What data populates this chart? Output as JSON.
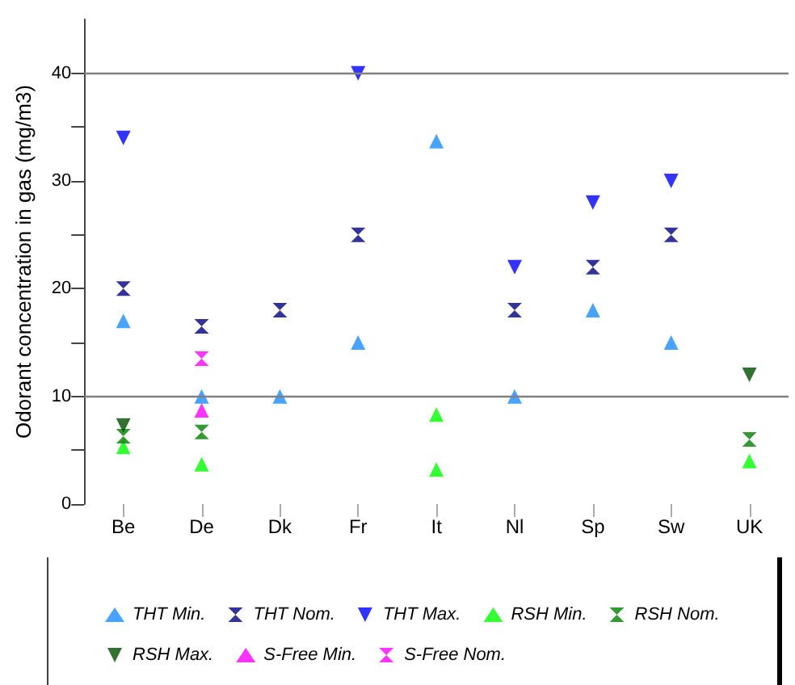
{
  "chart_data": {
    "type": "scatter",
    "ylabel": "Odorant concentration in gas (mg/m3)",
    "categories": [
      "Be",
      "De",
      "Dk",
      "Fr",
      "It",
      "Nl",
      "Sp",
      "Sw",
      "UK"
    ],
    "ylim": [
      0,
      45
    ],
    "yticks": [
      0,
      {
        "value": 5,
        "label": null
      },
      10,
      {
        "value": 15,
        "label": null
      },
      20,
      {
        "value": 25,
        "label": null
      },
      30,
      {
        "value": 35,
        "label": null
      },
      40
    ],
    "grid": false,
    "legend": "bottom",
    "ref_lines": [
      {
        "axis": "y",
        "value": 10,
        "color": "#808080"
      },
      {
        "axis": "y",
        "value": 40,
        "color": "#808080"
      }
    ],
    "series": [
      {
        "name": "THT Min.",
        "color": "#1a8cff",
        "marker": "triangle",
        "x": [
          "Be",
          "De",
          "Dk",
          "Fr",
          "It",
          "Nl",
          "Sp",
          "Sw"
        ],
        "values": [
          17,
          10,
          10,
          15,
          33.7,
          10,
          18,
          15
        ]
      },
      {
        "name": "THT Nom.",
        "color": "#000080",
        "x": [
          "Be",
          "De",
          "Dk",
          "Fr",
          "Nl",
          "Sp",
          "Sw"
        ],
        "values": [
          20,
          16.5,
          18,
          25,
          18,
          22,
          25
        ]
      },
      {
        "name": "THT Max.",
        "color": "#0000ff",
        "marker": "triangle-down",
        "x": [
          "Be",
          "Fr",
          "Nl",
          "Sp",
          "Sw"
        ],
        "values": [
          34,
          40,
          22,
          28,
          30
        ]
      },
      {
        "name": "RSH Min.",
        "color": "#00ff00",
        "marker": "triangle",
        "x": [
          "Be",
          "De",
          "It",
          "It",
          "UK"
        ],
        "values": [
          5.3,
          3.7,
          8.3,
          3.2,
          4
        ]
      },
      {
        "name": "RSH Nom.",
        "color": "#008000",
        "x": [
          "Be",
          "De",
          "UK"
        ],
        "values": [
          6.3,
          6.7,
          6
        ]
      },
      {
        "name": "RSH Max.",
        "color": "#004d00",
        "marker": "triangle-down",
        "x": [
          "Be",
          "UK"
        ],
        "values": [
          7.3,
          12
        ]
      },
      {
        "name": "S-Free Min.",
        "color": "#ff00ff",
        "marker": "triangle",
        "x": [
          "De"
        ],
        "values": [
          8.7
        ]
      },
      {
        "name": "S-Free Nom.",
        "color": "#ff00ff",
        "x": [
          "De"
        ],
        "values": [
          13.5
        ]
      }
    ]
  }
}
